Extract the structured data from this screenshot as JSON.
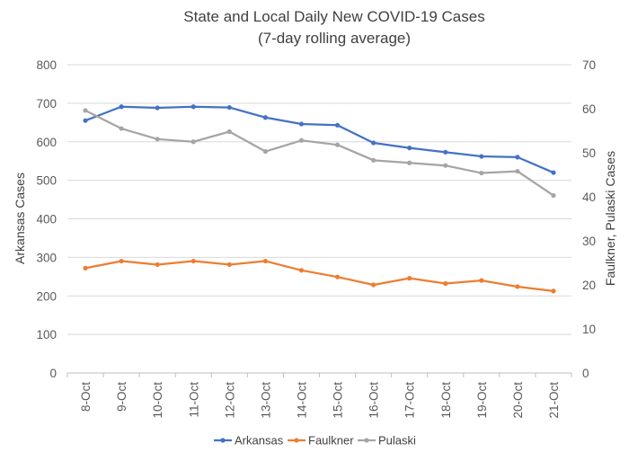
{
  "chart_data": {
    "type": "line",
    "title": "State and Local Daily New COVID-19 Cases",
    "subtitle": "(7-day rolling average)",
    "categories": [
      "8-Oct",
      "9-Oct",
      "10-Oct",
      "11-Oct",
      "12-Oct",
      "13-Oct",
      "14-Oct",
      "15-Oct",
      "16-Oct",
      "17-Oct",
      "18-Oct",
      "19-Oct",
      "20-Oct",
      "21-Oct"
    ],
    "ylabel": "Arkansas Cases",
    "y2label": "Faulkner, Pulaski Cases",
    "ylim": [
      0,
      800
    ],
    "y2lim": [
      0,
      70
    ],
    "yticks": [
      "0",
      "100",
      "200",
      "300",
      "400",
      "500",
      "600",
      "700",
      "800"
    ],
    "y2ticks": [
      "0",
      "10",
      "20",
      "30",
      "40",
      "50",
      "60",
      "70"
    ],
    "gridlines": true,
    "legend_position": "bottom",
    "series": [
      {
        "name": "Arkansas",
        "axis": "left",
        "color": "#4472C4",
        "values": [
          655,
          691,
          688,
          691,
          689,
          663,
          646,
          643,
          597,
          584,
          573,
          562,
          560,
          520
        ]
      },
      {
        "name": "Faulkner",
        "axis": "right",
        "color": "#ED7D31",
        "values": [
          23.8,
          25.4,
          24.6,
          25.4,
          24.6,
          25.4,
          23.3,
          21.8,
          20.0,
          21.5,
          20.3,
          21.0,
          19.6,
          18.6
        ]
      },
      {
        "name": "Pulaski",
        "axis": "right",
        "color": "#A5A5A5",
        "values": [
          59.6,
          55.5,
          53.1,
          52.5,
          54.8,
          50.3,
          52.8,
          51.8,
          48.3,
          47.7,
          47.1,
          45.4,
          45.8,
          40.3
        ]
      }
    ]
  }
}
